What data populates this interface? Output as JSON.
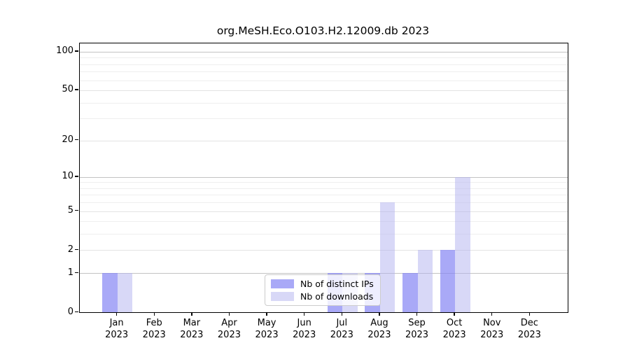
{
  "chart_data": {
    "type": "bar",
    "title": "org.MeSH.Eco.O103.H2.12009.db 2023",
    "categories": [
      "Jan",
      "Feb",
      "Mar",
      "Apr",
      "May",
      "Jun",
      "Jul",
      "Aug",
      "Sep",
      "Oct",
      "Nov",
      "Dec"
    ],
    "year_label": "2023",
    "series": [
      {
        "name": "Nb of distinct IPs",
        "color": "rgba(132,132,243,0.7)",
        "values": [
          1,
          0,
          0,
          0,
          0,
          0,
          1,
          1,
          1,
          2,
          0,
          0
        ]
      },
      {
        "name": "Nb of downloads",
        "color": "rgba(178,178,240,0.5)",
        "values": [
          1,
          0,
          0,
          0,
          0,
          0,
          1,
          6,
          2,
          10,
          0,
          0
        ]
      }
    ],
    "yscale": "log10(1+x)",
    "ylim": [
      0,
      116
    ],
    "yticks": [
      0,
      1,
      2,
      5,
      10,
      20,
      50,
      100
    ],
    "gridlines_major": [
      1,
      10,
      100
    ],
    "gridlines_mid": [
      2,
      5,
      20,
      50
    ],
    "gridlines_minor": [
      3,
      4,
      6,
      7,
      8,
      9,
      30,
      40,
      60,
      70,
      80,
      90
    ],
    "grid_color_major": "#c3c3c3",
    "grid_color_mid": "#e3e3e3",
    "grid_color_minor": "#efefef",
    "legend_position": "bottom-center"
  }
}
